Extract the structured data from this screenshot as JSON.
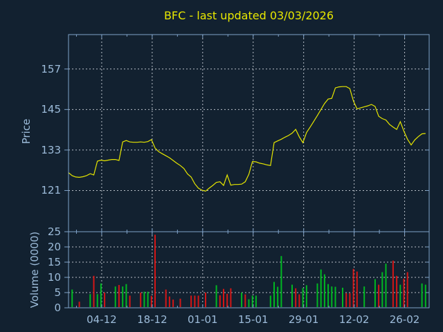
{
  "title": "BFC - last updated 03/03/2026",
  "colors": {
    "background": "#122130",
    "frame": "#7fa2c8",
    "grid": "#ccd2da",
    "text": "#9dbcda",
    "title": "#e8e800",
    "price_line": "#e6e600",
    "volume_up": "#00b822",
    "volume_down": "#d41616"
  },
  "chart_data": [
    {
      "type": "line",
      "name": "price",
      "title": "BFC - last updated 03/03/2026",
      "ylabel": "Price",
      "y_ticks": [
        157,
        145,
        133,
        121
      ],
      "ylim": [
        108.8,
        167.2
      ],
      "grid": true,
      "x_tick_labels": [
        "04-12",
        "18-12",
        "01-01",
        "15-01",
        "29-01",
        "12-02",
        "26-02"
      ],
      "x_tick_day_indices": [
        9.2,
        23.2,
        37.2,
        51.2,
        65.2,
        79.2,
        93.2
      ],
      "values": [
        126.3,
        125.4,
        125.0,
        124.9,
        125.1,
        125.4,
        126.0,
        125.6,
        129.7,
        130.0,
        129.8,
        130.0,
        130.2,
        130.2,
        129.9,
        135.4,
        135.8,
        135.4,
        135.3,
        135.3,
        135.4,
        135.3,
        135.5,
        136.1,
        133.6,
        132.5,
        131.9,
        131.3,
        130.7,
        129.9,
        129.1,
        128.4,
        127.5,
        125.9,
        125.0,
        123.0,
        121.7,
        121.1,
        120.8,
        121.7,
        122.5,
        123.4,
        123.6,
        122.5,
        125.6,
        122.6,
        122.8,
        122.8,
        122.9,
        123.6,
        125.8,
        129.6,
        129.5,
        129.1,
        128.9,
        128.6,
        128.4,
        135.2,
        135.7,
        136.2,
        136.8,
        137.3,
        138.0,
        139.1,
        136.9,
        135.2,
        138.2,
        139.8,
        141.5,
        143.2,
        145.0,
        146.8,
        148.1,
        148.3,
        151.4,
        151.7,
        151.8,
        151.8,
        151.2,
        147.5,
        145.2,
        145.5,
        145.8,
        146.1,
        146.5,
        145.9,
        143.0,
        142.3,
        141.9,
        140.6,
        139.8,
        139.1,
        141.4,
        138.6,
        136.2,
        134.5,
        136.0,
        137.0,
        137.8,
        137.9
      ]
    },
    {
      "type": "bar",
      "name": "volume",
      "ylabel": "Volume (0000)",
      "y_ticks": [
        25,
        20,
        15,
        10,
        5,
        0
      ],
      "ylim": [
        0,
        25
      ],
      "grid": true,
      "bars": [
        [
          1,
          6,
          "g"
        ],
        [
          3,
          2,
          "r"
        ],
        [
          6,
          4.5,
          "g"
        ],
        [
          7,
          10.5,
          "r"
        ],
        [
          8,
          4.5,
          "g"
        ],
        [
          9,
          8,
          "g"
        ],
        [
          10,
          5,
          "r"
        ],
        [
          13,
          7,
          "g"
        ],
        [
          14,
          7.5,
          "r"
        ],
        [
          15,
          7,
          "g"
        ],
        [
          16,
          7.8,
          "g"
        ],
        [
          17,
          4,
          "r"
        ],
        [
          20,
          5,
          "r"
        ],
        [
          21,
          5.3,
          "g"
        ],
        [
          22,
          5.3,
          "g"
        ],
        [
          23,
          3.9,
          "r"
        ],
        [
          24,
          24,
          "r"
        ],
        [
          27,
          6,
          "r"
        ],
        [
          28,
          3.7,
          "r"
        ],
        [
          29,
          2.7,
          "r"
        ],
        [
          31,
          3,
          "r"
        ],
        [
          34,
          4,
          "r"
        ],
        [
          35,
          4,
          "r"
        ],
        [
          36,
          4,
          "r"
        ],
        [
          38,
          5,
          "r"
        ],
        [
          41,
          7.4,
          "g"
        ],
        [
          42,
          4.1,
          "r"
        ],
        [
          43,
          6.2,
          "r"
        ],
        [
          44,
          4.6,
          "r"
        ],
        [
          45,
          6.4,
          "r"
        ],
        [
          48,
          5,
          "g"
        ],
        [
          49,
          4.4,
          "r"
        ],
        [
          50,
          2.8,
          "g"
        ],
        [
          51,
          4,
          "g"
        ],
        [
          52,
          4,
          "g"
        ],
        [
          56,
          4,
          "g"
        ],
        [
          57,
          8.5,
          "g"
        ],
        [
          58,
          6.9,
          "g"
        ],
        [
          59,
          17,
          "g"
        ],
        [
          62,
          7.6,
          "g"
        ],
        [
          63,
          6.4,
          "r"
        ],
        [
          64,
          4.4,
          "r"
        ],
        [
          65,
          6.5,
          "g"
        ],
        [
          66,
          7.4,
          "g"
        ],
        [
          69,
          8,
          "g"
        ],
        [
          70,
          12.6,
          "g"
        ],
        [
          71,
          11,
          "g"
        ],
        [
          72,
          7.8,
          "g"
        ],
        [
          73,
          7,
          "g"
        ],
        [
          74,
          6.9,
          "g"
        ],
        [
          76,
          6.6,
          "g"
        ],
        [
          77,
          4.8,
          "r"
        ],
        [
          78,
          4.8,
          "r"
        ],
        [
          79,
          12.8,
          "r"
        ],
        [
          80,
          11.9,
          "r"
        ],
        [
          82,
          7,
          "g"
        ],
        [
          85,
          9.4,
          "g"
        ],
        [
          86,
          7.6,
          "r"
        ],
        [
          87,
          11.7,
          "g"
        ],
        [
          88,
          14.5,
          "g"
        ],
        [
          90,
          15.5,
          "r"
        ],
        [
          91,
          10.5,
          "r"
        ],
        [
          92,
          7.6,
          "g"
        ],
        [
          93,
          9.6,
          "r"
        ],
        [
          94,
          11.7,
          "r"
        ],
        [
          98,
          8,
          "g"
        ],
        [
          99,
          7.6,
          "g"
        ]
      ]
    }
  ]
}
